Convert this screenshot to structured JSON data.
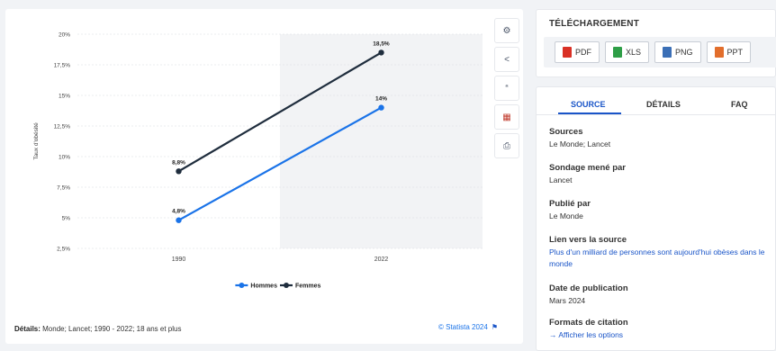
{
  "chart_data": {
    "type": "line",
    "categories": [
      "1990",
      "2022"
    ],
    "series": [
      {
        "name": "Hommes",
        "values": [
          4.8,
          14
        ],
        "labels": [
          "4,8%",
          "14%"
        ],
        "color": "#1a73e8"
      },
      {
        "name": "Femmes",
        "values": [
          8.8,
          18.5
        ],
        "labels": [
          "8,8%",
          "18,5%"
        ],
        "color": "#1f2d3d"
      }
    ],
    "ylabel": "Taux d'obésité",
    "ylim": [
      2.5,
      20
    ],
    "yticks": [
      2.5,
      5,
      7.5,
      10,
      12.5,
      15,
      17.5,
      20
    ],
    "yticklabels": [
      "2,5%",
      "5%",
      "7,5%",
      "10%",
      "12,5%",
      "15%",
      "17,5%",
      "20%"
    ],
    "grid": true,
    "legend": "bottom-center",
    "shaded_region": "2022"
  },
  "chart_footer": {
    "details_label": "Détails:",
    "details_text": "Monde; Lancet; 1990 - 2022; 18 ans et plus",
    "credit": "© Statista 2024"
  },
  "toolbar": [
    {
      "name": "settings-button",
      "icon": "gear-icon",
      "glyph": "⚙"
    },
    {
      "name": "share-button",
      "icon": "share-icon",
      "glyph": "<"
    },
    {
      "name": "cite-button",
      "icon": "quote-icon",
      "glyph": "“"
    },
    {
      "name": "flag-button",
      "icon": "flag-icon",
      "glyph": "▦"
    },
    {
      "name": "print-button",
      "icon": "printer-icon",
      "glyph": "⎙"
    }
  ],
  "download": {
    "title": "TÉLÉCHARGEMENT",
    "buttons": [
      {
        "label": "PDF",
        "icon": "pdf-file-icon"
      },
      {
        "label": "XLS",
        "icon": "xls-file-icon"
      },
      {
        "label": "PNG",
        "icon": "png-file-icon"
      },
      {
        "label": "PPT",
        "icon": "ppt-file-icon"
      }
    ]
  },
  "source_panel": {
    "tabs": [
      "SOURCE",
      "DÉTAILS",
      "FAQ"
    ],
    "active_tab": "SOURCE",
    "sources_h": "Sources",
    "sources_v": "Le Monde; Lancet",
    "survey_h": "Sondage mené par",
    "survey_v": "Lancet",
    "published_h": "Publié par",
    "published_v": "Le Monde",
    "link_h": "Lien vers la source",
    "link_v": "Plus d'un milliard de personnes sont aujourd'hui obèses dans le monde",
    "date_h": "Date de publication",
    "date_v": "Mars 2024",
    "citation_h": "Formats de citation",
    "citation_v": "→ Afficher les options"
  },
  "colors": {
    "accent": "#1a55c8",
    "hommes": "#1a73e8",
    "femmes": "#1f2d3d"
  }
}
